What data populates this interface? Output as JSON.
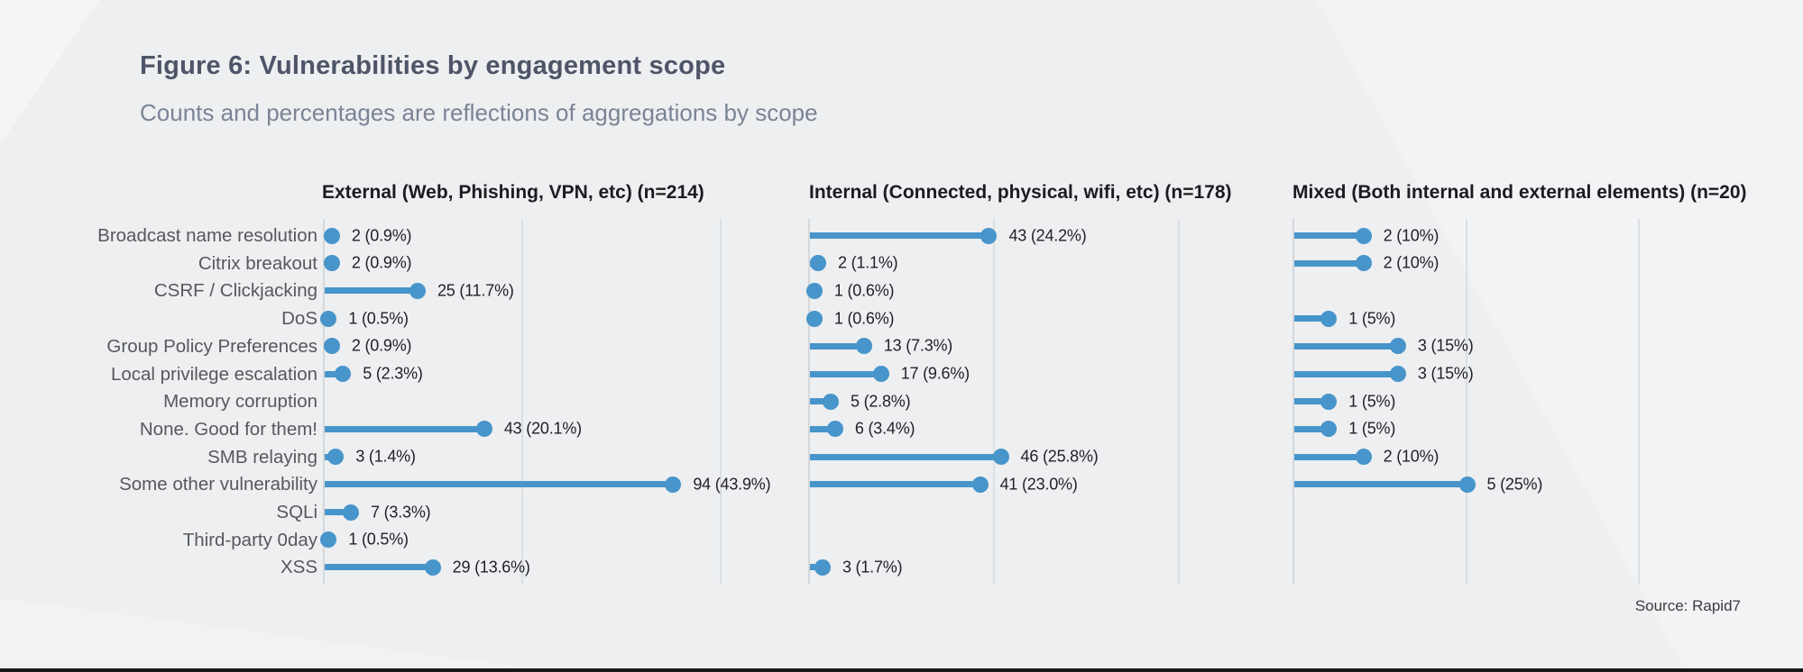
{
  "figure": {
    "title": "Figure 6: Vulnerabilities by engagement scope",
    "subtitle": "Counts and percentages are reflections of aggregations by scope",
    "source": "Source: Rapid7"
  },
  "colors": {
    "accent_blue": "#4795ca",
    "title_text": "#4e5568",
    "subtitle_text": "#7b8495",
    "category_label_text": "#57585b",
    "value_text": "#212227",
    "axis_grid": "#d5d8db",
    "background": "#edeff1",
    "bottom_bar": "#17181a"
  },
  "chart_data": {
    "type": "bar",
    "variant": "horizontal-lollipop-small-multiples",
    "categories": [
      "Broadcast name resolution",
      "Citrix breakout",
      "CSRF / Clickjacking",
      "DoS",
      "Group Policy Preferences",
      "Local privilege escalation",
      "Memory corruption",
      "None. Good for them!",
      "SMB relaying",
      "Some other vulnerability",
      "SQLi",
      "Third-party 0day",
      "XSS"
    ],
    "panels": [
      {
        "header": "External (Web, Phishing, VPN, etc) (n=214)",
        "n": 214,
        "values": [
          {
            "count": 2,
            "pct": 0.9,
            "label": "2 (0.9%)"
          },
          {
            "count": 2,
            "pct": 0.9,
            "label": "2 (0.9%)"
          },
          {
            "count": 25,
            "pct": 11.7,
            "label": "25 (11.7%)"
          },
          {
            "count": 1,
            "pct": 0.5,
            "label": "1 (0.5%)"
          },
          {
            "count": 2,
            "pct": 0.9,
            "label": "2 (0.9%)"
          },
          {
            "count": 5,
            "pct": 2.3,
            "label": "5 (2.3%)"
          },
          null,
          {
            "count": 43,
            "pct": 20.1,
            "label": "43 (20.1%)"
          },
          {
            "count": 3,
            "pct": 1.4,
            "label": "3 (1.4%)"
          },
          {
            "count": 94,
            "pct": 43.9,
            "label": "94 (43.9%)"
          },
          {
            "count": 7,
            "pct": 3.3,
            "label": "7 (3.3%)"
          },
          {
            "count": 1,
            "pct": 0.5,
            "label": "1 (0.5%)"
          },
          {
            "count": 29,
            "pct": 13.6,
            "label": "29 (13.6%)"
          }
        ]
      },
      {
        "header": "Internal (Connected, physical, wifi, etc) (n=178)",
        "n": 178,
        "values": [
          {
            "count": 43,
            "pct": 24.2,
            "label": "43 (24.2%)"
          },
          {
            "count": 2,
            "pct": 1.1,
            "label": "2 (1.1%)"
          },
          {
            "count": 1,
            "pct": 0.6,
            "label": "1 (0.6%)"
          },
          {
            "count": 1,
            "pct": 0.6,
            "label": "1 (0.6%)"
          },
          {
            "count": 13,
            "pct": 7.3,
            "label": "13 (7.3%)"
          },
          {
            "count": 17,
            "pct": 9.6,
            "label": "17 (9.6%)"
          },
          {
            "count": 5,
            "pct": 2.8,
            "label": "5 (2.8%)"
          },
          {
            "count": 6,
            "pct": 3.4,
            "label": "6 (3.4%)"
          },
          {
            "count": 46,
            "pct": 25.8,
            "label": "46 (25.8%)"
          },
          {
            "count": 41,
            "pct": 23.0,
            "label": "41 (23.0%)"
          },
          null,
          null,
          {
            "count": 3,
            "pct": 1.7,
            "label": "3 (1.7%)"
          }
        ]
      },
      {
        "header": "Mixed (Both internal and external elements) (n=20)",
        "n": 20,
        "values": [
          {
            "count": 2,
            "pct": 10,
            "label": "2 (10%)"
          },
          {
            "count": 2,
            "pct": 10,
            "label": "2 (10%)"
          },
          null,
          {
            "count": 1,
            "pct": 5,
            "label": "1 (5%)"
          },
          {
            "count": 3,
            "pct": 15,
            "label": "3 (15%)"
          },
          {
            "count": 3,
            "pct": 15,
            "label": "3 (15%)"
          },
          {
            "count": 1,
            "pct": 5,
            "label": "1 (5%)"
          },
          {
            "count": 1,
            "pct": 5,
            "label": "1 (5%)"
          },
          {
            "count": 2,
            "pct": 10,
            "label": "2 (10%)"
          },
          {
            "count": 5,
            "pct": 25,
            "label": "5 (25%)"
          },
          null,
          null,
          null
        ]
      }
    ],
    "layout_hints": {
      "gridline_pcts": [
        25,
        50
      ],
      "legend": "none",
      "value_unit": "count (percent of panel n)",
      "xlim_pct": [
        0,
        57
      ]
    }
  }
}
